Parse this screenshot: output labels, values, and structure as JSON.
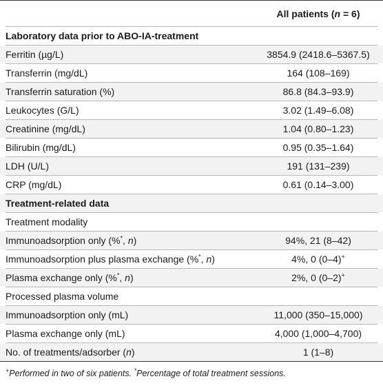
{
  "header": {
    "col1": "",
    "col2": "All patients (n = 6)"
  },
  "rows": [
    {
      "label": "Laboratory data prior to ABO-IA-treatment",
      "value": "",
      "section": true
    },
    {
      "label": "Ferritin (µg/L)",
      "value": "3854.9 (2418.6–5367.5)"
    },
    {
      "label": "Transferrin (mg/dL)",
      "value": "164 (108–169)"
    },
    {
      "label": "Transferrin saturation (%)",
      "value": "86.8 (84.3–93.9)"
    },
    {
      "label": "Leukocytes (G/L)",
      "value": "3.02 (1.49–6.08)"
    },
    {
      "label": "Creatinine (mg/dL)",
      "value": "1.04 (0.80–1.23)"
    },
    {
      "label": "Bilirubin (mg/dL)",
      "value": "0.95 (0.35–1.64)"
    },
    {
      "label": "LDH (U/L)",
      "value": "191 (131–239)"
    },
    {
      "label": "CRP (mg/dL)",
      "value": "0.61 (0.14–3.00)"
    },
    {
      "label": "Treatment-related data",
      "value": "",
      "section": true
    },
    {
      "label": "Treatment modality",
      "value": ""
    },
    {
      "label": "Immunoadsorption only (%*, n)",
      "value": "94%, 21 (8–42)"
    },
    {
      "label": "Immunoadsorption plus plasma exchange (%*, n)",
      "value": "4%, 0 (0–4)+"
    },
    {
      "label": "Plasma exchange only (%*, n)",
      "value": "2%, 0 (0–2)+"
    },
    {
      "label": "Processed plasma volume",
      "value": ""
    },
    {
      "label": "Immunoadsorption only (mL)",
      "value": "11,000 (350–15,000)"
    },
    {
      "label": "Plasma exchange only (mL)",
      "value": "4,000 (1,000–4,700)"
    },
    {
      "label": "No. of treatments/adsorber (n)",
      "value": "1 (1–8)"
    }
  ],
  "footnote": "+Performed in two of six patients. *Percentage of total treatment sessions."
}
